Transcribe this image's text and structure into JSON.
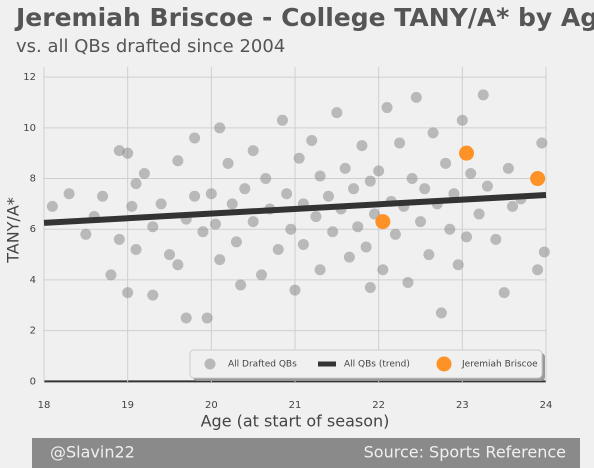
{
  "chart_data": {
    "type": "scatter",
    "title": "Jeremiah Briscoe - College TANY/A* by Age",
    "subtitle": "vs. all QBs drafted since 2004",
    "x_label": "Age (at start of season)",
    "y_label": "TANY/A*",
    "xlim": [
      18,
      24
    ],
    "xticks": [
      18,
      19,
      20,
      21,
      22,
      23,
      24
    ],
    "ylim": [
      -0.5,
      12.4
    ],
    "yticks": [
      0,
      2,
      4,
      6,
      8,
      10,
      12
    ],
    "grid": true,
    "legend": "lower right",
    "series": [
      {
        "name": "All Drafted QBs",
        "color": "#8c8c8c",
        "kind": "points",
        "x": [
          18.1,
          18.3,
          18.5,
          18.6,
          18.7,
          18.8,
          18.9,
          18.9,
          19.0,
          19.0,
          19.05,
          19.1,
          19.1,
          19.2,
          19.3,
          19.3,
          19.4,
          19.5,
          19.6,
          19.6,
          19.7,
          19.7,
          19.8,
          19.8,
          19.9,
          19.95,
          20.0,
          20.05,
          20.1,
          20.1,
          20.2,
          20.25,
          20.3,
          20.35,
          20.4,
          20.5,
          20.5,
          20.6,
          20.65,
          20.7,
          20.8,
          20.85,
          20.9,
          20.95,
          21.0,
          21.05,
          21.1,
          21.1,
          21.2,
          21.25,
          21.3,
          21.3,
          21.4,
          21.45,
          21.5,
          21.55,
          21.6,
          21.65,
          21.7,
          21.75,
          21.8,
          21.85,
          21.9,
          21.9,
          21.95,
          22.0,
          22.05,
          22.1,
          22.15,
          22.2,
          22.25,
          22.3,
          22.35,
          22.4,
          22.45,
          22.5,
          22.55,
          22.6,
          22.65,
          22.7,
          22.75,
          22.8,
          22.85,
          22.9,
          22.95,
          23.0,
          23.05,
          23.1,
          23.2,
          23.25,
          23.3,
          23.4,
          23.5,
          23.55,
          23.6,
          23.7,
          23.9,
          23.95,
          23.98
        ],
        "values": [
          6.9,
          7.4,
          5.8,
          6.5,
          7.3,
          4.2,
          9.1,
          5.6,
          9.0,
          3.5,
          6.9,
          7.8,
          5.2,
          8.2,
          6.1,
          3.4,
          7.0,
          5.0,
          8.7,
          4.6,
          6.4,
          2.5,
          7.3,
          9.6,
          5.9,
          2.5,
          7.4,
          6.2,
          10.0,
          4.8,
          8.6,
          7.0,
          5.5,
          3.8,
          7.6,
          9.1,
          6.3,
          4.2,
          8.0,
          6.8,
          5.2,
          10.3,
          7.4,
          6.0,
          3.6,
          8.8,
          7.0,
          5.4,
          9.5,
          6.5,
          4.4,
          8.1,
          7.3,
          5.9,
          10.6,
          6.8,
          8.4,
          4.9,
          7.6,
          6.1,
          9.3,
          5.3,
          7.9,
          3.7,
          6.6,
          8.3,
          4.4,
          10.8,
          7.1,
          5.8,
          9.4,
          6.9,
          3.9,
          8.0,
          11.2,
          6.3,
          7.6,
          5.0,
          9.8,
          7.0,
          2.7,
          8.6,
          6.0,
          7.4,
          4.6,
          10.3,
          5.7,
          8.2,
          6.6,
          11.3,
          7.7,
          5.6,
          3.5,
          8.4,
          6.9,
          7.2,
          4.4,
          9.4,
          5.1
        ]
      },
      {
        "name": "All QBs (trend)",
        "color": "#333333",
        "kind": "line",
        "x": [
          18,
          24
        ],
        "values": [
          6.25,
          7.35
        ]
      },
      {
        "name": "Jeremiah Briscoe",
        "color": "#ff8c1a",
        "kind": "points",
        "x": [
          22.05,
          23.05,
          23.9
        ],
        "values": [
          6.3,
          9.0,
          8.0
        ]
      }
    ],
    "footer_left": "@Slavin22",
    "footer_right": "Source: Sports Reference"
  }
}
